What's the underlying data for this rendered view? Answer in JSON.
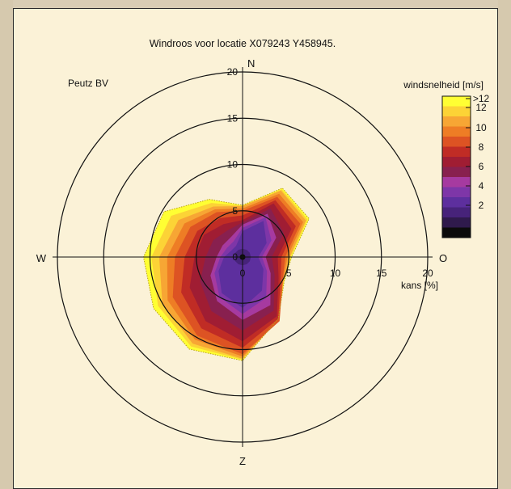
{
  "chart_data": {
    "type": "wind-rose",
    "title": "Windroos voor locatie X079243 Y458945.",
    "company": "Peutz BV",
    "radial_axis": {
      "label": "kans [%]",
      "ticks": [
        0,
        5,
        10,
        15,
        20
      ],
      "max": 20
    },
    "directions": {
      "north": "N",
      "east": "O",
      "south": "Z",
      "west": "W"
    },
    "legend": {
      "title": "windsnelheid [m/s]",
      "placement": "top-right",
      "ticks": [
        ">12",
        "12",
        "10",
        "8",
        "6",
        "4",
        "2"
      ],
      "colors": [
        "#ffff33",
        "#fcd336",
        "#f7a634",
        "#ee7d25",
        "#dd5323",
        "#c02c25",
        "#a01d33",
        "#88204f",
        "#a63aa0",
        "#7e36a8",
        "#5d2f9e",
        "#47237a",
        "#2f1a4c",
        "#0b0b0b"
      ]
    },
    "sector_angles_deg": [
      0,
      30,
      60,
      90,
      120,
      150,
      180,
      210,
      240,
      270,
      300,
      330
    ],
    "cumulative_kans_percent": {
      "ge_2": [
        2.8,
        4.5,
        3.0,
        1.7,
        2.6,
        4.2,
        5.5,
        4.5,
        3.0,
        2.0,
        1.4,
        1.4
      ],
      "ge_4": [
        3.5,
        5.4,
        4.2,
        2.5,
        3.5,
        6.0,
        6.8,
        5.5,
        4.0,
        2.8,
        2.5,
        2.5
      ],
      "ge_6": [
        4.0,
        6.7,
        6.1,
        3.8,
        4.5,
        7.4,
        9.1,
        8.0,
        6.6,
        5.2,
        4.8,
        4.1
      ],
      "ge_8": [
        5.0,
        7.5,
        7.2,
        4.6,
        5.0,
        8.0,
        10.5,
        9.8,
        8.7,
        7.3,
        6.5,
        5.6
      ],
      "ge_10": [
        5.5,
        8.3,
        7.9,
        5.1,
        5.1,
        7.8,
        11.0,
        10.8,
        10.0,
        9.0,
        8.0,
        6.3
      ],
      "ge_12": [
        5.6,
        8.6,
        8.3,
        5.3,
        5.2,
        7.7,
        11.2,
        11.5,
        11.1,
        10.7,
        9.8,
        7.2
      ]
    }
  }
}
